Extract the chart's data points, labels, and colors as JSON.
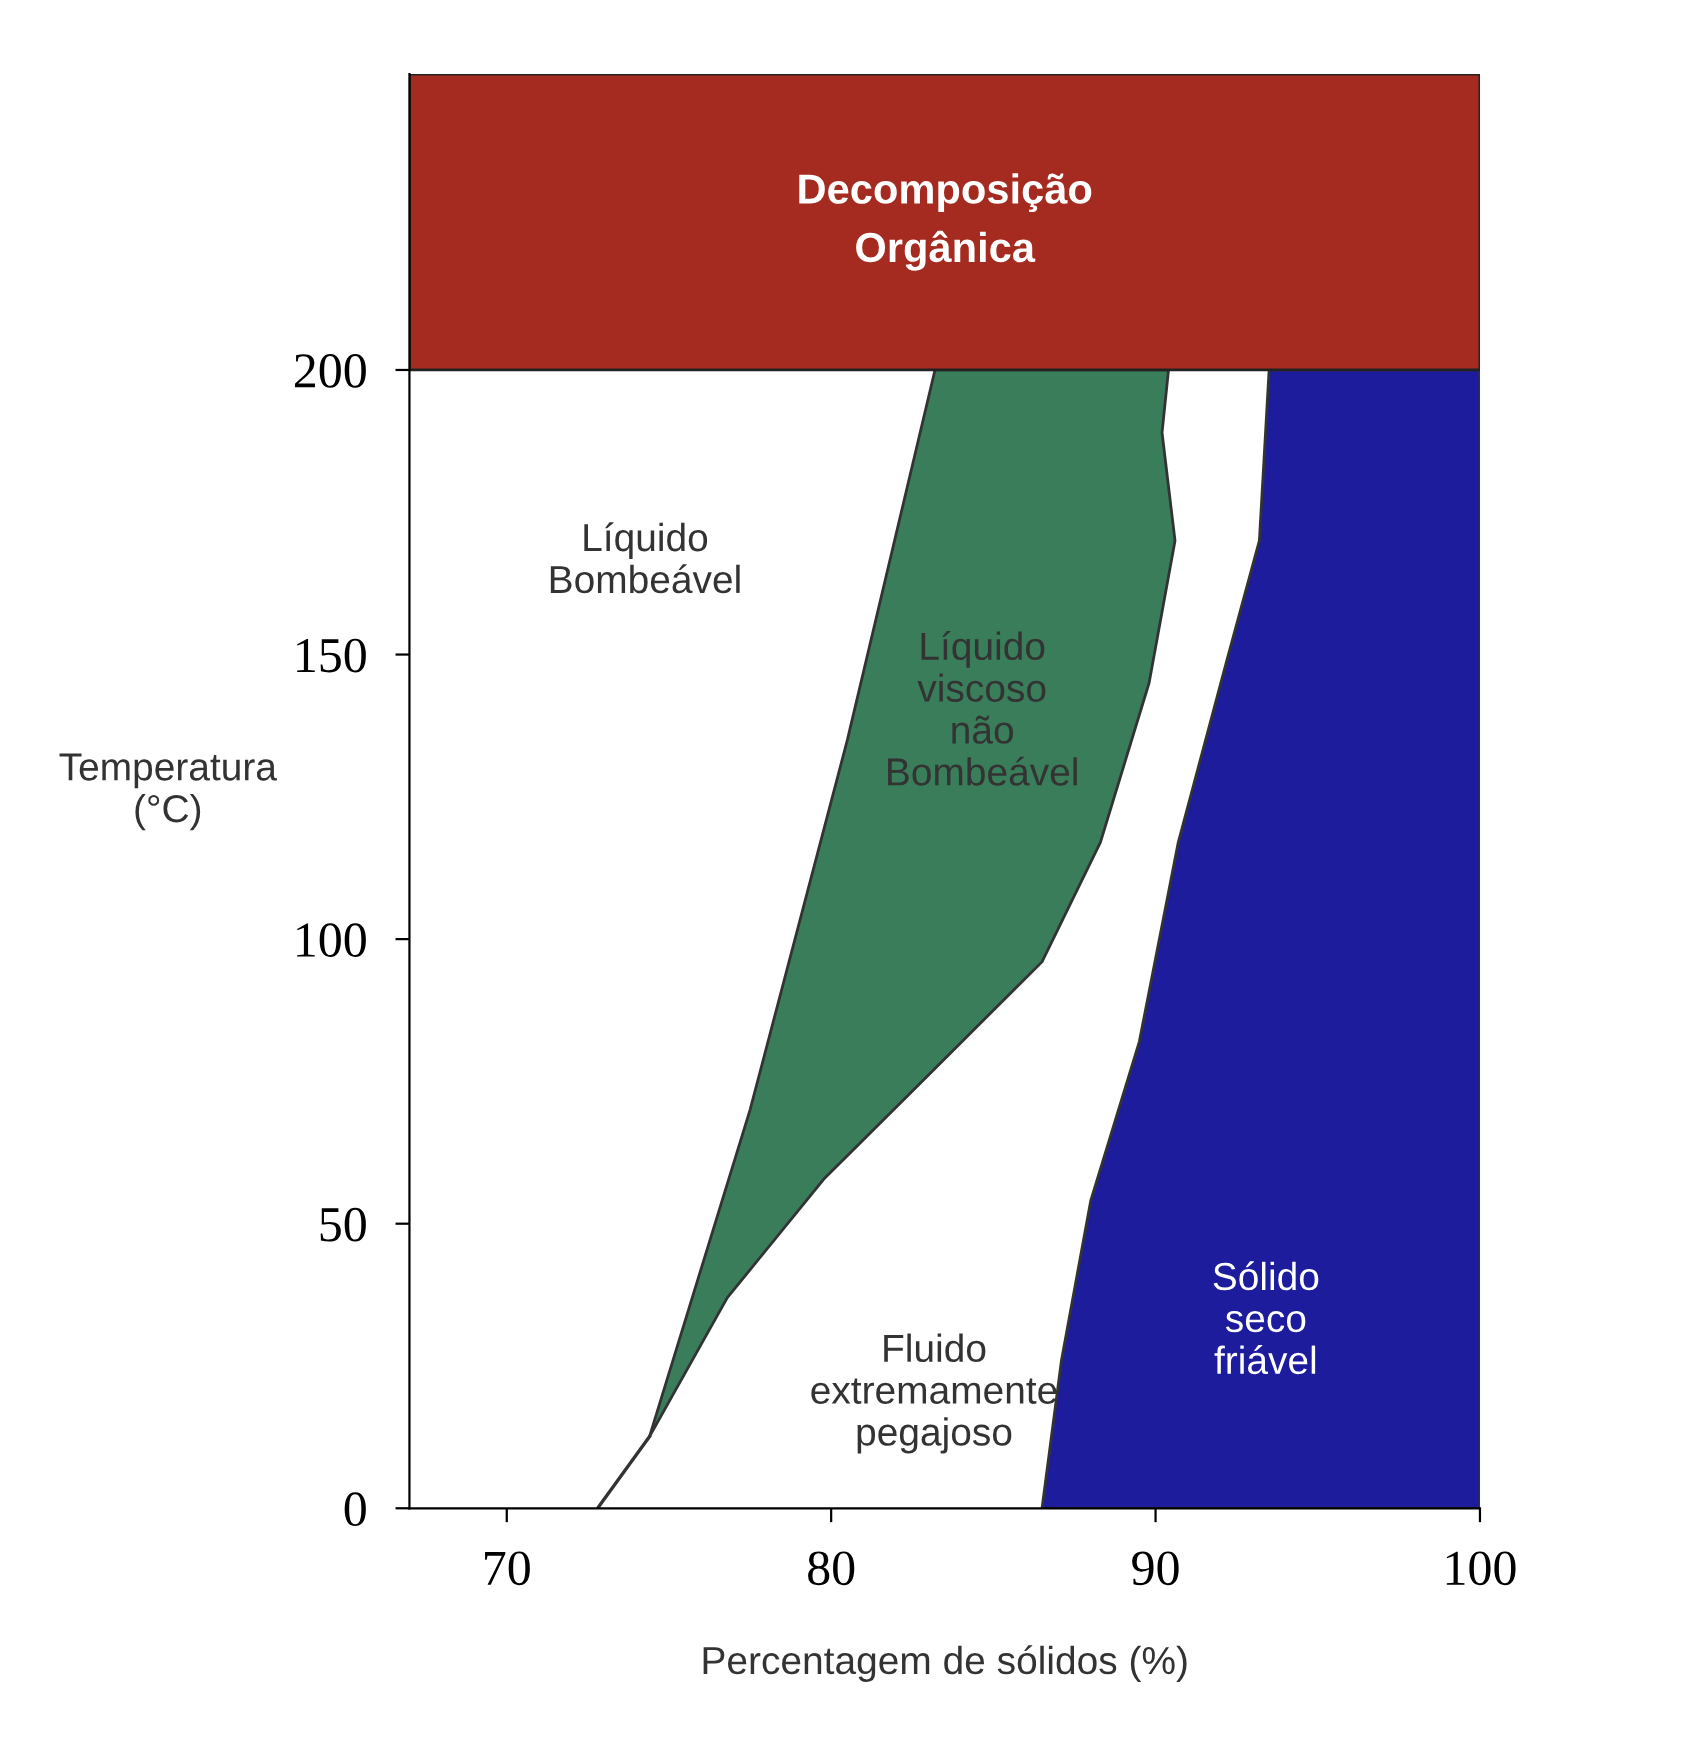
{
  "chart_data": {
    "type": "area",
    "xlabel": "Percentagem de sólidos (%)",
    "ylabel": "Temperatura\n(°C)",
    "xlim": [
      67,
      100
    ],
    "ylim": [
      0,
      252
    ],
    "xticks": [
      70,
      80,
      90,
      100
    ],
    "yticks": [
      0,
      50,
      100,
      150,
      200
    ],
    "grid": false,
    "legend": false,
    "series": [
      {
        "name": "Líquido\nviscoso\nnão\nBombeável",
        "color": "#3a7d5a",
        "x": [
          74.4,
          77.5,
          80.5,
          83.2,
          90.4,
          90.2,
          90.6,
          89.8,
          88.3,
          86.5,
          82.8,
          79.8,
          76.8,
          74.4
        ],
        "values": [
          12.6,
          70,
          135,
          200,
          200,
          189,
          170,
          145,
          117,
          96,
          75,
          58,
          37,
          12.6
        ]
      },
      {
        "name": "Sólido\nseco\nfriável",
        "color": "#1c1c9c",
        "x": [
          86.5,
          87.1,
          88.0,
          89.5,
          90.7,
          92.2,
          93.2,
          93.5,
          100,
          100,
          86.5
        ],
        "values": [
          0,
          26,
          54,
          82,
          117,
          149,
          170,
          200,
          200,
          0,
          0
        ]
      },
      {
        "type": "line",
        "color": "#333333",
        "x": [
          72.8,
          74.4
        ],
        "values": [
          0,
          12.6
        ]
      }
    ],
    "bands": [
      {
        "axis": "y",
        "from": 200,
        "to": 252,
        "label": "Decomposição\nOrgânica",
        "color": "#a52a20"
      }
    ],
    "annotations": [
      "Líquido\nBombeável",
      "Fluido\nextremamente\npegajoso"
    ]
  }
}
